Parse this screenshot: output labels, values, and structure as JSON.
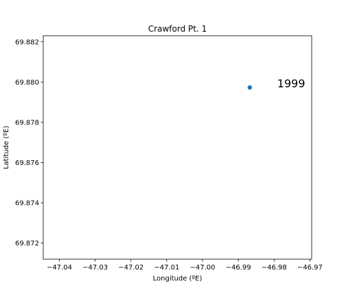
{
  "chart_data": {
    "type": "scatter",
    "title": "Crawford Pt. 1",
    "xlabel": "Longitude (ºE)",
    "ylabel": "Latitude (ºE)",
    "xlim": [
      -47.0445,
      -46.9695
    ],
    "ylim": [
      69.8712,
      69.8823
    ],
    "xticks": [
      -47.04,
      -47.03,
      -47.02,
      -47.01,
      -47.0,
      -46.99,
      -46.98,
      -46.97
    ],
    "xtick_labels": [
      "−47.04",
      "−47.03",
      "−47.02",
      "−47.01",
      "−47.00",
      "−46.99",
      "−46.98",
      "−46.97"
    ],
    "yticks": [
      69.872,
      69.874,
      69.876,
      69.878,
      69.88,
      69.882
    ],
    "ytick_labels": [
      "69.872",
      "69.874",
      "69.876",
      "69.878",
      "69.880",
      "69.882"
    ],
    "points": [
      {
        "x": -46.9868,
        "y": 69.87973,
        "label": "1999"
      }
    ],
    "marker_color": "#1f77b4",
    "grid": false
  }
}
